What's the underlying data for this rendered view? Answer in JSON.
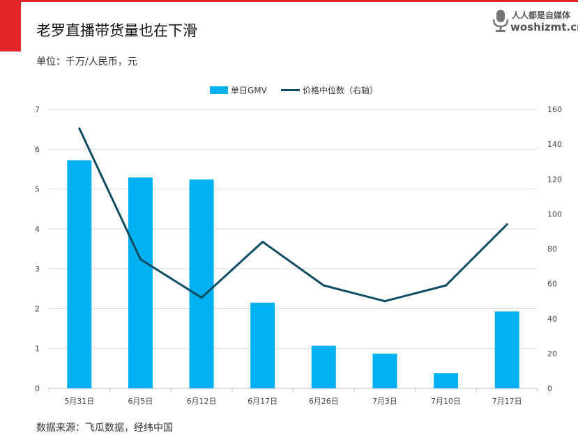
{
  "header": {
    "title": "老罗直播带货量也在下滑",
    "unit": "单位：千万/人民币，元"
  },
  "footer": {
    "source": "数据来源：飞瓜数据，经纬中国"
  },
  "watermark": {
    "name_cn": "人人都是自媒体",
    "site": "woshizmt.cn",
    "icon": "microphone-icon"
  },
  "colors": {
    "accent": "#e0262b",
    "bar": "#00b0f0",
    "line": "#0f4c64",
    "grid": "#d9d9d9"
  },
  "chart_data": {
    "type": "bar",
    "categories": [
      "5月31日",
      "6月5日",
      "6月12日",
      "6月17日",
      "6月26日",
      "7月3日",
      "7月10日",
      "7月17日"
    ],
    "series": [
      {
        "name": "单日GMV",
        "type": "bar",
        "axis": "left",
        "values": [
          5.72,
          5.29,
          5.24,
          2.15,
          1.07,
          0.87,
          0.38,
          1.93
        ]
      },
      {
        "name": "价格中位数（右轴）",
        "type": "line",
        "axis": "right",
        "values": [
          149,
          74,
          52,
          84,
          59,
          50,
          59,
          94
        ]
      }
    ],
    "y_left": {
      "min": 0,
      "max": 7,
      "ticks": [
        0,
        1,
        2,
        3,
        4,
        5,
        6,
        7
      ]
    },
    "y_right": {
      "min": 0,
      "max": 160,
      "ticks": [
        0,
        20,
        40,
        60,
        80,
        100,
        120,
        140,
        160
      ]
    },
    "grid": true,
    "legend_position": "top-center"
  }
}
